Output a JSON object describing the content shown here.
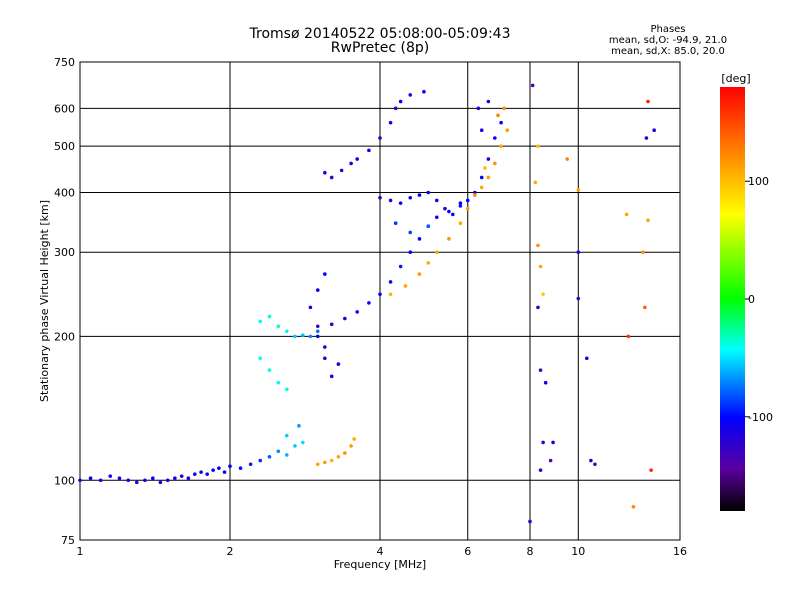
{
  "chart_data": {
    "type": "scatter",
    "title": "Tromsø 20140522 05:08:00-05:09:43",
    "subtitle": "RwPretec (8p)",
    "xlabel": "Frequency [MHz]",
    "ylabel": "Stationary phase Virtual Height [km]",
    "xscale": "log",
    "yscale": "log",
    "xlim": [
      1,
      16
    ],
    "ylim": [
      75,
      750
    ],
    "x_ticks": [
      1,
      2,
      4,
      6,
      8,
      10,
      16
    ],
    "x_tick_labels": [
      "1",
      "2",
      "4",
      "6",
      "8",
      "10",
      "16"
    ],
    "y_ticks": [
      75,
      100,
      200,
      300,
      400,
      500,
      600,
      750
    ],
    "y_tick_labels": [
      "75",
      "100",
      "200",
      "300",
      "400",
      "500",
      "600",
      "750"
    ],
    "grid": true,
    "colorbar": {
      "label": "[deg]",
      "range": [
        -180,
        180
      ],
      "ticks": [
        100,
        0,
        -100
      ],
      "tick_labels": [
        "100",
        "0",
        "-100"
      ]
    },
    "annotation": {
      "heading": "Phases",
      "line1": "mean, sd,O: -94.9, 21.0",
      "line2": "mean, sd,X:  85.0, 20.0"
    },
    "series": [
      {
        "points": [
          [
            1.0,
            100,
            -110
          ],
          [
            1.05,
            101,
            -105
          ],
          [
            1.1,
            100,
            -112
          ],
          [
            1.15,
            102,
            -108
          ],
          [
            1.2,
            101,
            -115
          ],
          [
            1.25,
            100,
            -110
          ],
          [
            1.3,
            99,
            -118
          ],
          [
            1.35,
            100,
            -112
          ],
          [
            1.4,
            101,
            -105
          ],
          [
            1.45,
            99,
            -115
          ],
          [
            1.5,
            100,
            -110
          ],
          [
            1.55,
            101,
            -108
          ],
          [
            1.6,
            102,
            -112
          ],
          [
            1.65,
            101,
            -110
          ],
          [
            1.7,
            103,
            -105
          ],
          [
            1.75,
            104,
            -108
          ],
          [
            1.8,
            103,
            -110
          ],
          [
            1.85,
            105,
            -100
          ],
          [
            1.9,
            106,
            -105
          ],
          [
            1.95,
            104,
            -102
          ],
          [
            2.0,
            107,
            -100
          ],
          [
            2.1,
            106,
            -98
          ],
          [
            2.2,
            108,
            -95
          ],
          [
            2.3,
            110,
            -90
          ],
          [
            2.4,
            112,
            -80
          ],
          [
            2.5,
            115,
            -70
          ],
          [
            2.6,
            113,
            -60
          ],
          [
            2.7,
            118,
            -55
          ],
          [
            2.8,
            120,
            -50
          ],
          [
            2.6,
            124,
            -55
          ],
          [
            2.75,
            130,
            -65
          ]
        ]
      },
      {
        "points": [
          [
            3.0,
            108,
            110
          ],
          [
            3.1,
            109,
            115
          ],
          [
            3.2,
            110,
            105
          ],
          [
            3.3,
            112,
            110
          ],
          [
            3.4,
            114,
            120
          ],
          [
            3.5,
            118,
            115
          ],
          [
            3.55,
            122,
            110
          ]
        ]
      },
      {
        "points": [
          [
            2.3,
            215,
            -40
          ],
          [
            2.4,
            220,
            -35
          ],
          [
            2.5,
            210,
            -30
          ],
          [
            2.6,
            205,
            -45
          ],
          [
            2.7,
            200,
            -55
          ],
          [
            2.8,
            201,
            -60
          ],
          [
            2.9,
            200,
            -70
          ],
          [
            3.0,
            205,
            -75
          ],
          [
            2.3,
            180,
            -40
          ],
          [
            2.4,
            170,
            -35
          ],
          [
            2.5,
            160,
            -45
          ],
          [
            2.6,
            155,
            -40
          ]
        ]
      },
      {
        "points": [
          [
            2.9,
            230,
            -110
          ],
          [
            3.0,
            250,
            -105
          ],
          [
            3.1,
            270,
            -100
          ],
          [
            3.0,
            200,
            -110
          ],
          [
            3.1,
            180,
            -120
          ],
          [
            3.2,
            165,
            -115
          ],
          [
            3.1,
            190,
            -125
          ],
          [
            3.3,
            175,
            -120
          ]
        ]
      },
      {
        "points": [
          [
            3.0,
            210,
            -130
          ],
          [
            3.2,
            212,
            -125
          ],
          [
            3.4,
            218,
            -120
          ],
          [
            3.6,
            225,
            -115
          ],
          [
            3.8,
            235,
            -110
          ],
          [
            4.0,
            245,
            -105
          ],
          [
            4.2,
            260,
            -100
          ],
          [
            4.4,
            280,
            -95
          ],
          [
            4.6,
            300,
            -100
          ],
          [
            4.8,
            320,
            -105
          ],
          [
            5.0,
            340,
            -110
          ],
          [
            5.2,
            355,
            -105
          ],
          [
            5.5,
            365,
            -100
          ],
          [
            5.8,
            375,
            -95
          ],
          [
            6.0,
            385,
            -100
          ],
          [
            6.2,
            400,
            -105
          ],
          [
            6.4,
            430,
            -110
          ],
          [
            6.6,
            470,
            -115
          ],
          [
            6.8,
            520,
            -110
          ],
          [
            7.0,
            560,
            -105
          ],
          [
            6.3,
            600,
            -120
          ],
          [
            6.6,
            620,
            -115
          ],
          [
            6.4,
            540,
            -118
          ]
        ]
      },
      {
        "points": [
          [
            4.0,
            390,
            -120
          ],
          [
            4.2,
            385,
            -115
          ],
          [
            4.4,
            380,
            -110
          ],
          [
            4.6,
            390,
            -100
          ],
          [
            4.8,
            395,
            -105
          ],
          [
            5.0,
            400,
            -110
          ],
          [
            5.2,
            385,
            -115
          ],
          [
            5.4,
            370,
            -120
          ],
          [
            5.6,
            360,
            -110
          ],
          [
            5.8,
            380,
            -100
          ],
          [
            4.3,
            345,
            -90
          ],
          [
            4.6,
            330,
            -85
          ],
          [
            5.0,
            340,
            -80
          ]
        ]
      },
      {
        "points": [
          [
            4.2,
            245,
            105
          ],
          [
            4.5,
            255,
            110
          ],
          [
            4.8,
            270,
            115
          ],
          [
            5.0,
            285,
            108
          ],
          [
            5.2,
            300,
            112
          ],
          [
            5.5,
            320,
            118
          ],
          [
            5.8,
            345,
            110
          ],
          [
            6.0,
            370,
            115
          ],
          [
            6.2,
            395,
            120
          ],
          [
            6.4,
            410,
            108
          ],
          [
            6.6,
            430,
            112
          ],
          [
            6.8,
            460,
            118
          ],
          [
            7.0,
            500,
            110
          ],
          [
            7.2,
            540,
            115
          ],
          [
            7.1,
            600,
            120
          ],
          [
            6.9,
            580,
            125
          ],
          [
            6.5,
            450,
            100
          ]
        ]
      },
      {
        "points": [
          [
            3.1,
            440,
            -120
          ],
          [
            3.2,
            430,
            -125
          ],
          [
            3.35,
            445,
            -130
          ],
          [
            3.5,
            460,
            -120
          ],
          [
            3.6,
            470,
            -115
          ],
          [
            3.8,
            490,
            -110
          ],
          [
            4.0,
            520,
            -115
          ],
          [
            4.2,
            560,
            -110
          ],
          [
            4.3,
            600,
            -115
          ],
          [
            4.6,
            640,
            -120
          ],
          [
            4.9,
            650,
            -110
          ],
          [
            4.4,
            620,
            -108
          ]
        ]
      },
      {
        "points": [
          [
            8.1,
            670,
            -140
          ],
          [
            8.3,
            500,
            100
          ],
          [
            8.2,
            420,
            110
          ],
          [
            8.3,
            310,
            120
          ],
          [
            8.4,
            280,
            110
          ],
          [
            8.5,
            245,
            95
          ],
          [
            8.3,
            230,
            -120
          ],
          [
            8.4,
            170,
            -130
          ],
          [
            8.6,
            160,
            -110
          ],
          [
            8.5,
            120,
            -125
          ],
          [
            8.4,
            105,
            -115
          ],
          [
            8.0,
            82,
            -130
          ],
          [
            8.8,
            110,
            -140
          ],
          [
            8.9,
            120,
            -110
          ],
          [
            9.5,
            470,
            125
          ],
          [
            10.0,
            405,
            110
          ],
          [
            10.0,
            300,
            -120
          ],
          [
            10.0,
            240,
            -130
          ],
          [
            10.4,
            180,
            -115
          ],
          [
            10.6,
            110,
            -120
          ],
          [
            10.8,
            108,
            -135
          ],
          [
            12.5,
            360,
            110
          ],
          [
            12.6,
            200,
            160
          ],
          [
            12.9,
            88,
            120
          ],
          [
            13.8,
            620,
            165
          ],
          [
            13.7,
            520,
            -110
          ],
          [
            14.2,
            540,
            -110
          ],
          [
            13.8,
            350,
            110
          ],
          [
            13.5,
            300,
            120
          ],
          [
            13.6,
            230,
            140
          ],
          [
            14.0,
            105,
            165
          ]
        ]
      }
    ]
  }
}
